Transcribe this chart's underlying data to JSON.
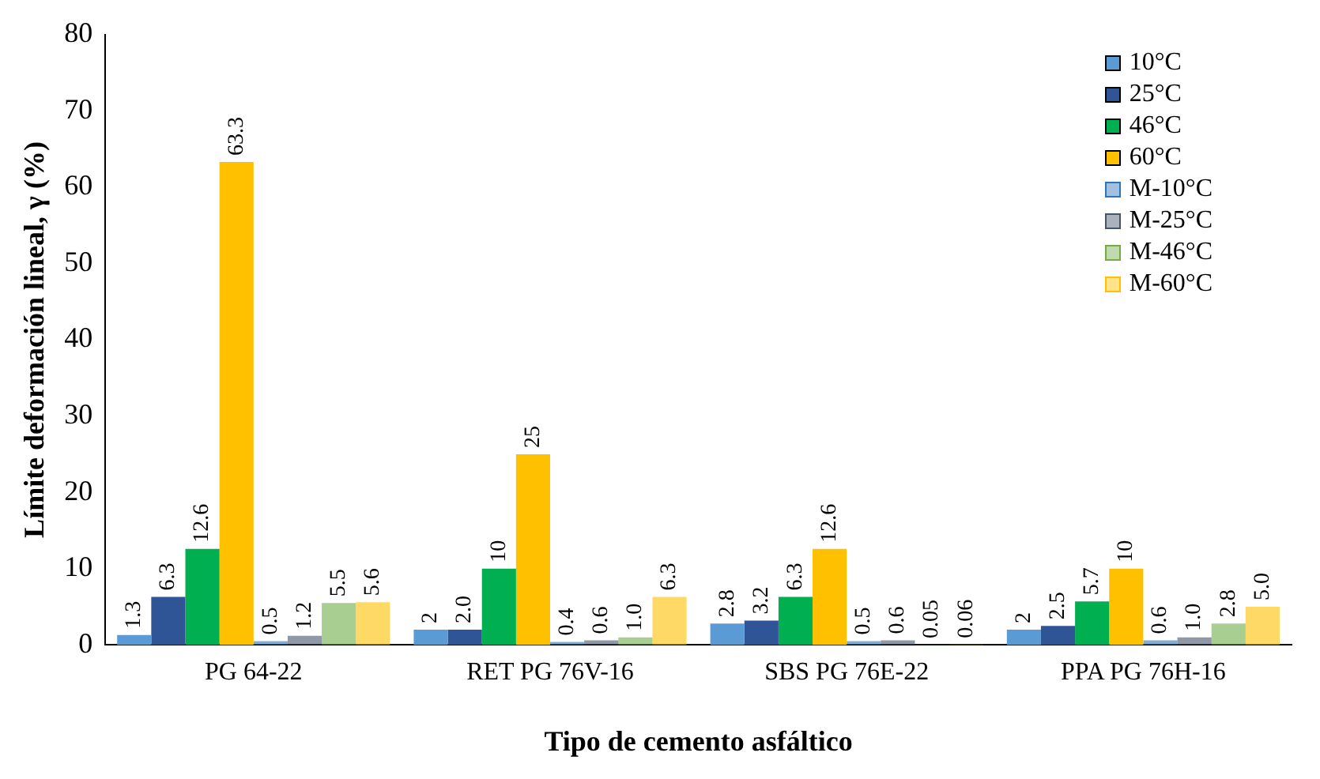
{
  "chart_data": {
    "type": "bar",
    "xlabel": "Tipo de cemento asfáltico",
    "ylabel": "Límite deformación lineal, γ (%)",
    "categories": [
      "PG 64-22",
      "RET PG 76V-16",
      "SBS PG 76E-22",
      "PPA PG 76H-16"
    ],
    "series": [
      {
        "name": "10°C",
        "color": "#5b9bd5",
        "values": [
          1.3,
          2,
          2.8,
          2
        ],
        "value_labels": [
          "1.3",
          "2",
          "2.8",
          "2"
        ]
      },
      {
        "name": "25°C",
        "color": "#2f5597",
        "values": [
          6.3,
          2.0,
          3.2,
          2.5
        ],
        "value_labels": [
          "6.3",
          "2.0",
          "3.2",
          "2.5"
        ]
      },
      {
        "name": "46°C",
        "color": "#00b050",
        "values": [
          12.6,
          10,
          6.3,
          5.7
        ],
        "value_labels": [
          "12.6",
          "10",
          "6.3",
          "5.7"
        ]
      },
      {
        "name": "60°C",
        "color": "#ffc000",
        "values": [
          63.3,
          25,
          12.6,
          10
        ],
        "value_labels": [
          "63.3",
          "25",
          "12.6",
          "10"
        ]
      },
      {
        "name": "M-10°C",
        "color": "#2e75b6",
        "values": [
          0.5,
          0.4,
          0.5,
          0.6
        ],
        "value_labels": [
          "0.5",
          "0.4",
          "0.5",
          "0.6"
        ]
      },
      {
        "name": "M-25°C",
        "color": "#44546a",
        "values": [
          1.2,
          0.6,
          0.6,
          1.0
        ],
        "value_labels": [
          "1.2",
          "0.6",
          "0.6",
          "1.0"
        ]
      },
      {
        "name": "M-46°C",
        "color": "#70ad47",
        "values": [
          5.5,
          1.0,
          0.05,
          2.8
        ],
        "value_labels": [
          "5.5",
          "1.0",
          "0.05",
          "2.8"
        ]
      },
      {
        "name": "M-60°C",
        "color": "#ffc000",
        "values": [
          5.6,
          6.3,
          0.06,
          5.0
        ],
        "value_labels": [
          "5.6",
          "6.3",
          "0.06",
          "5.0"
        ]
      }
    ],
    "ylim": [
      0,
      80
    ],
    "yticks": [
      0,
      10,
      20,
      30,
      40,
      50,
      60,
      70,
      80
    ],
    "grid": false,
    "legend": "top right"
  }
}
